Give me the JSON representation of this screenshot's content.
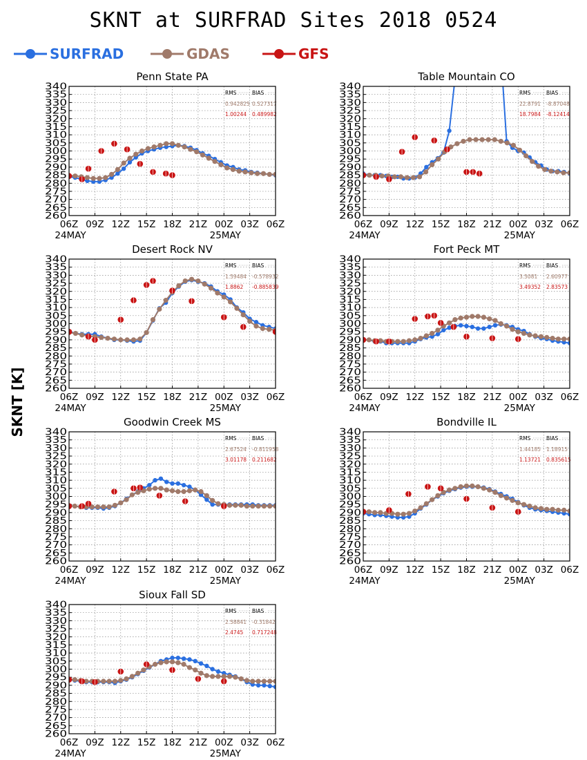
{
  "title": "SKNT at SURFRAD Sites    2018 0524",
  "ylabel": "SKNT [K]",
  "legend": [
    {
      "name": "SURFRAD",
      "color": "#2a6fe0"
    },
    {
      "name": "GDAS",
      "color": "#a07a6a"
    },
    {
      "name": "GFS",
      "color": "#c81414"
    }
  ],
  "x_ticks": [
    "06Z",
    "09Z",
    "12Z",
    "15Z",
    "18Z",
    "21Z",
    "00Z",
    "03Z",
    "06Z"
  ],
  "date_labels": [
    "24MAY",
    "25MAY"
  ],
  "y_ticks": [
    260,
    265,
    270,
    275,
    280,
    285,
    290,
    295,
    300,
    305,
    310,
    315,
    320,
    325,
    330,
    335,
    340
  ],
  "stats_header": {
    "rms": "RMS",
    "bias": "BIAS"
  },
  "chart_data": [
    {
      "type": "line",
      "title": "Penn State PA",
      "xlabel": "",
      "ylabel": "SKNT [K]",
      "x_hours": [
        0,
        3,
        6,
        9,
        12,
        15,
        18,
        21,
        24
      ],
      "ylim": [
        260,
        340
      ],
      "stats": {
        "gdas": [
          "0.942825",
          "0.527317"
        ],
        "gfs": [
          "1.00244",
          "0.489982"
        ]
      },
      "surfrad": [
        284,
        283.5,
        282.5,
        281.5,
        281,
        281,
        282,
        283.5,
        286,
        289,
        293,
        296,
        298.5,
        300,
        301,
        302,
        302.5,
        303,
        303.5,
        303,
        302,
        300.5,
        298.5,
        297,
        295,
        293,
        291,
        290,
        288.5,
        288,
        287,
        286.5,
        286,
        285.5,
        285
      ],
      "gdas": [
        284.5,
        284.5,
        284,
        283.5,
        283,
        283,
        283.5,
        285.5,
        288.5,
        292.5,
        295.5,
        298,
        300,
        301.5,
        302.5,
        303.5,
        304.5,
        304.5,
        303.5,
        302.5,
        301,
        299.5,
        297.5,
        295.5,
        293.5,
        291.5,
        289.5,
        288.5,
        287.5,
        287,
        286.5,
        286,
        286,
        285.5,
        285.5
      ],
      "gfs": [
        [
          0,
          284.5
        ],
        [
          6,
          282.5
        ],
        [
          9,
          289
        ],
        [
          15,
          300
        ],
        [
          21,
          304.5
        ],
        [
          27,
          301
        ],
        [
          33,
          292
        ],
        [
          39,
          287
        ],
        [
          45,
          286
        ],
        [
          48,
          285
        ]
      ]
    },
    {
      "type": "line",
      "title": "Table Mountain CO",
      "xlabel": "",
      "ylabel": "",
      "x_hours": [
        0,
        3,
        6,
        9,
        12,
        15,
        18,
        21,
        24
      ],
      "ylim": [
        260,
        340
      ],
      "stats": {
        "gdas": [
          "22.8791",
          "-8.87048"
        ],
        "gfs": [
          "18.7984",
          "-8.12414"
        ]
      },
      "surfrad": [
        286,
        285,
        285,
        285,
        284.5,
        284,
        284,
        283,
        283,
        283.5,
        286,
        290,
        293,
        295.5,
        299,
        312.5,
        345,
        360,
        360,
        360,
        360,
        360,
        360,
        360,
        360,
        306,
        302,
        300,
        299,
        296,
        293,
        291,
        288.5,
        287.5,
        287.5,
        287,
        286
      ],
      "gdas": [
        285,
        285,
        285,
        284.5,
        284.5,
        284,
        284,
        283.5,
        283.5,
        284,
        287,
        291.5,
        295,
        299.5,
        302.5,
        304.5,
        306,
        307,
        307,
        307,
        307,
        307,
        306,
        305,
        303.5,
        300.5,
        297,
        293.5,
        290.5,
        288.5,
        287.5,
        287,
        286.5,
        286.5
      ],
      "gfs": [
        [
          0,
          285
        ],
        [
          6,
          284
        ],
        [
          12,
          282.5
        ],
        [
          18,
          299.5
        ],
        [
          24,
          308.5
        ],
        [
          33,
          306.5
        ],
        [
          39,
          301
        ],
        [
          48,
          287
        ],
        [
          51,
          287
        ],
        [
          54,
          286
        ]
      ]
    },
    {
      "type": "line",
      "title": "Desert Rock NV",
      "xlabel": "",
      "ylabel": "",
      "x_hours": [
        0,
        3,
        6,
        9,
        12,
        15,
        18,
        21,
        24
      ],
      "ylim": [
        260,
        340
      ],
      "stats": {
        "gdas": [
          "1.59484",
          "-0.578932"
        ],
        "gfs": [
          "1.8862",
          "-0.885839"
        ]
      },
      "surfrad": [
        295,
        294,
        293.5,
        293.5,
        293.5,
        292,
        291,
        290,
        290,
        289.5,
        289,
        289.5,
        294.5,
        302,
        309.5,
        313,
        319,
        323,
        326,
        327,
        326,
        325,
        323,
        320,
        318,
        315,
        310,
        307,
        303,
        301,
        299,
        298,
        297
      ],
      "gdas": [
        294.5,
        294,
        293,
        292.5,
        292,
        291.5,
        291,
        290.5,
        290,
        290,
        290,
        290.5,
        294.5,
        302.5,
        309,
        314.5,
        319.5,
        323.5,
        326.5,
        327.5,
        326.5,
        324.5,
        322,
        319,
        316.5,
        313.5,
        309.5,
        305.5,
        301.5,
        298.5,
        297,
        296.5,
        296
      ],
      "gfs": [
        [
          0,
          295
        ],
        [
          9,
          292
        ],
        [
          12,
          290
        ],
        [
          24,
          302.5
        ],
        [
          30,
          314.5
        ],
        [
          36,
          324
        ],
        [
          39,
          326.5
        ],
        [
          48,
          320.5
        ],
        [
          57,
          314
        ],
        [
          72,
          304
        ],
        [
          81,
          298
        ],
        [
          96,
          295
        ]
      ]
    },
    {
      "type": "line",
      "title": "Fort Peck MT",
      "xlabel": "",
      "ylabel": "",
      "x_hours": [
        0,
        3,
        6,
        9,
        12,
        15,
        18,
        21,
        24
      ],
      "ylim": [
        260,
        340
      ],
      "stats": {
        "gdas": [
          "3.5081",
          "2.60977"
        ],
        "gfs": [
          "3.49352",
          "2.83573"
        ]
      },
      "surfrad": [
        290,
        290,
        289,
        289,
        288,
        288,
        288,
        288,
        288,
        289,
        290.5,
        291.5,
        292,
        293.5,
        296,
        297.5,
        298.5,
        299,
        298.5,
        298,
        297,
        297,
        298,
        299,
        299.5,
        299,
        298,
        296.5,
        295.5,
        293.5,
        292,
        291,
        290.5,
        289.5,
        289,
        288.5,
        288
      ],
      "gdas": [
        290,
        290,
        289.5,
        289.5,
        289,
        289,
        289,
        289,
        289.5,
        290,
        291,
        292.5,
        294,
        296,
        298.5,
        300.5,
        302.5,
        303.5,
        304,
        304.5,
        304.5,
        304,
        303,
        302,
        300,
        298.5,
        296.5,
        295,
        294,
        293,
        292.5,
        292,
        291.5,
        291,
        290.5,
        290.5,
        290.5
      ],
      "gfs": [
        [
          0,
          290
        ],
        [
          6,
          289
        ],
        [
          12,
          289
        ],
        [
          24,
          303
        ],
        [
          30,
          304.5
        ],
        [
          33,
          305
        ],
        [
          36,
          300.5
        ],
        [
          42,
          298
        ],
        [
          48,
          292
        ],
        [
          60,
          291
        ],
        [
          72,
          290.5
        ]
      ]
    },
    {
      "type": "line",
      "title": "Goodwin Creek MS",
      "xlabel": "",
      "ylabel": "",
      "x_hours": [
        0,
        3,
        6,
        9,
        12,
        15,
        18,
        21,
        24
      ],
      "ylim": [
        260,
        340
      ],
      "stats": {
        "gdas": [
          "2.67524",
          "-0.811958"
        ],
        "gfs": [
          "3.01178",
          "0.211682"
        ]
      },
      "surfrad": [
        294,
        294,
        293.5,
        293,
        293,
        293,
        292.5,
        293,
        294,
        296,
        298.5,
        301,
        303,
        305,
        307,
        310,
        311,
        309,
        308,
        308,
        307,
        306,
        304,
        301,
        298,
        295,
        295,
        295,
        295,
        295,
        295,
        295,
        295,
        294.5,
        294.5,
        294.5,
        294.5
      ],
      "gdas": [
        294,
        294,
        293.5,
        293.5,
        293.5,
        293.5,
        293.5,
        293.5,
        294.5,
        296,
        298,
        301,
        302.5,
        303.5,
        304.5,
        305,
        305,
        304,
        303.5,
        303,
        303,
        303.5,
        304,
        303,
        300.5,
        297.5,
        295.5,
        295,
        294.5,
        294.5,
        294.5,
        294,
        294,
        294,
        294,
        294,
        294
      ],
      "gfs": [
        [
          0,
          294
        ],
        [
          6,
          294
        ],
        [
          9,
          295.5
        ],
        [
          21,
          303
        ],
        [
          30,
          305
        ],
        [
          33,
          305.5
        ],
        [
          42,
          300.5
        ],
        [
          54,
          297
        ],
        [
          72,
          294
        ]
      ]
    },
    {
      "type": "line",
      "title": "Bondville IL",
      "xlabel": "",
      "ylabel": "",
      "x_hours": [
        0,
        3,
        6,
        9,
        12,
        15,
        18,
        21,
        24
      ],
      "ylim": [
        260,
        340
      ],
      "stats": {
        "gdas": [
          "1.44185",
          "1.18915"
        ],
        "gfs": [
          "1.13721",
          "0.835615"
        ]
      },
      "surfrad": [
        289.5,
        289,
        288.5,
        288.5,
        288,
        287.5,
        287,
        287,
        287.5,
        289.5,
        292.5,
        295,
        298,
        300,
        302,
        303.5,
        304.5,
        305.5,
        306,
        306,
        306,
        305.5,
        304.5,
        303,
        301.5,
        300,
        298.5,
        296.5,
        294.5,
        293,
        292,
        291.5,
        291,
        290.5,
        290,
        289.5,
        289
      ],
      "gdas": [
        290.5,
        290.5,
        290,
        290,
        289.5,
        289.5,
        289,
        289,
        289.5,
        291,
        293,
        295.5,
        298,
        300.5,
        302.5,
        304,
        305,
        306,
        306.5,
        306.5,
        306,
        305,
        304,
        302.5,
        300.5,
        299,
        297.5,
        296,
        295,
        294,
        293,
        292.5,
        292,
        292,
        291.5,
        291.5,
        291
      ],
      "gfs": [
        [
          0,
          290.5
        ],
        [
          12,
          291.5
        ],
        [
          21,
          301.5
        ],
        [
          30,
          306
        ],
        [
          36,
          305
        ],
        [
          48,
          298.5
        ],
        [
          60,
          293
        ],
        [
          72,
          290.5
        ]
      ]
    },
    {
      "type": "line",
      "title": "Sioux Fall SD",
      "xlabel": "",
      "ylabel": "",
      "x_hours": [
        0,
        3,
        6,
        9,
        12,
        15,
        18,
        21,
        24
      ],
      "ylim": [
        260,
        340
      ],
      "stats": {
        "gdas": [
          "2.58841",
          "-0.31842"
        ],
        "gfs": [
          "2.4745",
          "0.717248"
        ]
      },
      "surfrad": [
        293.5,
        293,
        292.5,
        292,
        292,
        292,
        292,
        292,
        291.5,
        292.5,
        293.5,
        295,
        297,
        299,
        301,
        303,
        305,
        306,
        307,
        307,
        306.5,
        306,
        305,
        303.5,
        302,
        300,
        298.5,
        297.5,
        296.5,
        295.5,
        294,
        292,
        290.5,
        290,
        290,
        289.5,
        289
      ],
      "gdas": [
        293.5,
        293.5,
        293,
        292.5,
        292.5,
        292.5,
        292.5,
        292.5,
        292.5,
        293,
        294,
        295.5,
        297.5,
        299.5,
        301.5,
        303,
        304,
        304.5,
        304.5,
        304,
        303,
        301,
        299.5,
        297.5,
        296,
        295.5,
        295.5,
        295.5,
        295.5,
        295,
        294,
        293,
        292.5,
        292.5,
        292.5,
        292.5,
        292.5
      ],
      "gfs": [
        [
          0,
          293.5
        ],
        [
          6,
          292.5
        ],
        [
          12,
          292
        ],
        [
          24,
          298.5
        ],
        [
          36,
          303
        ],
        [
          48,
          299.5
        ],
        [
          60,
          294
        ],
        [
          72,
          292.5
        ]
      ]
    }
  ]
}
